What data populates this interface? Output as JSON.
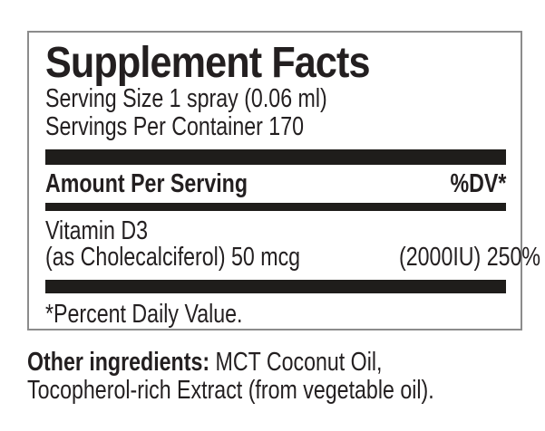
{
  "panel": {
    "title": "Supplement Facts",
    "serving_size": "Serving Size 1 spray (0.06 ml)",
    "servings_per_container": "Servings Per Container 170",
    "header": {
      "amount_per_serving": "Amount Per Serving",
      "percent_dv": "%DV*"
    },
    "nutrients": [
      {
        "name": "Vitamin D3",
        "detail": "(as Cholecalciferol) 50 mcg",
        "dv": "(2000IU) 250%"
      }
    ],
    "footnote": "*Percent Daily Value."
  },
  "other_ingredients": {
    "label": "Other ingredients:",
    "line1": "MCT Coconut Oil,",
    "line2": "Tocopherol-rich Extract (from vegetable oil)."
  },
  "colors": {
    "text": "#231f20",
    "bar": "#1f1d1b",
    "border": "#8c8c8c",
    "background": "#ffffff"
  }
}
